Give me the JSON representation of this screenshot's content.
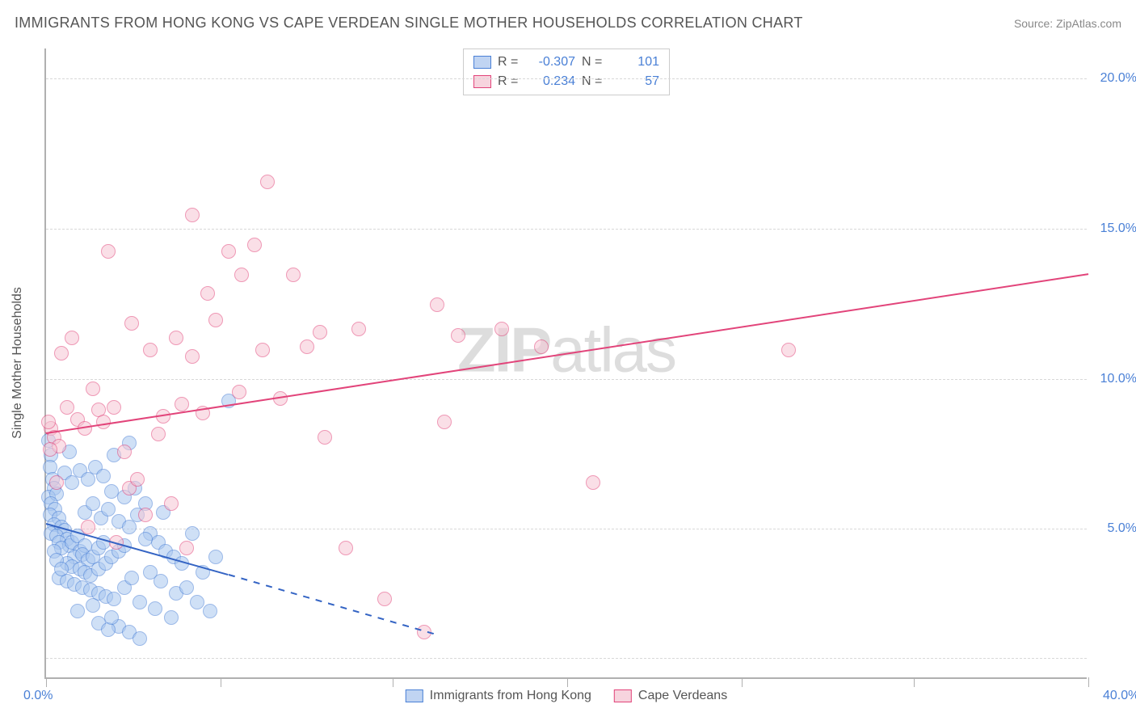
{
  "title": "IMMIGRANTS FROM HONG KONG VS CAPE VERDEAN SINGLE MOTHER HOUSEHOLDS CORRELATION CHART",
  "source": "Source: ZipAtlas.com",
  "watermark": "ZIPatlas",
  "ylabel": "Single Mother Households",
  "xlim": [
    0,
    40
  ],
  "ylim": [
    0,
    21
  ],
  "xtick_positions": [
    0,
    6.7,
    13.3,
    20,
    26.7,
    33.3,
    40
  ],
  "xtick_labels": {
    "0": "0.0%",
    "40": "40.0%"
  },
  "ytick_positions": [
    5,
    10,
    15,
    20
  ],
  "ytick_labels": {
    "5": "5.0%",
    "10": "10.0%",
    "15": "15.0%",
    "20": "20.0%"
  },
  "grid_y": [
    0.7,
    5,
    10,
    15,
    20
  ],
  "series": [
    {
      "name": "Immigrants from Hong Kong",
      "color": "blue",
      "r": "-0.307",
      "n": "101",
      "trend": {
        "x1": 0,
        "y1": 5.2,
        "x2_solid": 7,
        "y2_solid": 3.5,
        "x2_dashed": 15,
        "y2_dashed": 1.5
      },
      "points": [
        [
          0.1,
          7.9
        ],
        [
          0.2,
          7.4
        ],
        [
          0.15,
          7.0
        ],
        [
          0.25,
          6.6
        ],
        [
          0.3,
          6.3
        ],
        [
          0.1,
          6.0
        ],
        [
          0.4,
          6.1
        ],
        [
          0.2,
          5.8
        ],
        [
          0.35,
          5.6
        ],
        [
          0.15,
          5.4
        ],
        [
          0.5,
          5.3
        ],
        [
          0.3,
          5.1
        ],
        [
          0.6,
          5.0
        ],
        [
          0.2,
          4.8
        ],
        [
          0.7,
          4.9
        ],
        [
          0.4,
          4.7
        ],
        [
          0.8,
          4.6
        ],
        [
          0.5,
          4.5
        ],
        [
          0.9,
          4.4
        ],
        [
          0.6,
          4.3
        ],
        [
          1.0,
          4.5
        ],
        [
          1.2,
          4.7
        ],
        [
          1.3,
          4.2
        ],
        [
          1.5,
          4.4
        ],
        [
          1.1,
          4.0
        ],
        [
          1.4,
          4.1
        ],
        [
          1.6,
          3.9
        ],
        [
          1.8,
          4.0
        ],
        [
          2.0,
          4.3
        ],
        [
          2.2,
          4.5
        ],
        [
          0.8,
          3.8
        ],
        [
          1.0,
          3.7
        ],
        [
          1.3,
          3.6
        ],
        [
          1.5,
          3.5
        ],
        [
          1.7,
          3.4
        ],
        [
          2.0,
          3.6
        ],
        [
          2.3,
          3.8
        ],
        [
          2.5,
          4.0
        ],
        [
          2.8,
          4.2
        ],
        [
          3.0,
          4.4
        ],
        [
          0.5,
          3.3
        ],
        [
          0.8,
          3.2
        ],
        [
          1.1,
          3.1
        ],
        [
          1.4,
          3.0
        ],
        [
          1.7,
          2.9
        ],
        [
          2.0,
          2.8
        ],
        [
          2.3,
          2.7
        ],
        [
          2.6,
          2.6
        ],
        [
          3.0,
          3.0
        ],
        [
          3.3,
          3.3
        ],
        [
          0.7,
          6.8
        ],
        [
          1.0,
          6.5
        ],
        [
          1.3,
          6.9
        ],
        [
          1.6,
          6.6
        ],
        [
          1.9,
          7.0
        ],
        [
          2.2,
          6.7
        ],
        [
          2.5,
          6.2
        ],
        [
          1.5,
          5.5
        ],
        [
          1.8,
          5.8
        ],
        [
          2.1,
          5.3
        ],
        [
          2.4,
          5.6
        ],
        [
          2.8,
          5.2
        ],
        [
          3.2,
          5.0
        ],
        [
          3.5,
          5.4
        ],
        [
          3.0,
          6.0
        ],
        [
          3.4,
          6.3
        ],
        [
          3.8,
          5.8
        ],
        [
          4.0,
          4.8
        ],
        [
          4.3,
          4.5
        ],
        [
          4.6,
          4.2
        ],
        [
          4.9,
          4.0
        ],
        [
          5.2,
          3.8
        ],
        [
          4.0,
          3.5
        ],
        [
          4.4,
          3.2
        ],
        [
          3.6,
          2.5
        ],
        [
          4.2,
          2.3
        ],
        [
          4.8,
          2.0
        ],
        [
          5.0,
          2.8
        ],
        [
          5.4,
          3.0
        ],
        [
          5.8,
          2.5
        ],
        [
          2.8,
          1.7
        ],
        [
          3.2,
          1.5
        ],
        [
          3.6,
          1.3
        ],
        [
          2.0,
          1.8
        ],
        [
          2.4,
          1.6
        ],
        [
          6.0,
          3.5
        ],
        [
          6.3,
          2.2
        ],
        [
          0.9,
          7.5
        ],
        [
          2.6,
          7.4
        ],
        [
          3.2,
          7.8
        ],
        [
          5.6,
          4.8
        ],
        [
          6.5,
          4.0
        ],
        [
          0.3,
          4.2
        ],
        [
          0.4,
          3.9
        ],
        [
          0.6,
          3.6
        ],
        [
          1.2,
          2.2
        ],
        [
          1.8,
          2.4
        ],
        [
          2.5,
          2.0
        ],
        [
          3.8,
          4.6
        ],
        [
          4.5,
          5.5
        ],
        [
          7.0,
          9.2
        ]
      ]
    },
    {
      "name": "Cape Verdeans",
      "color": "pink",
      "r": "0.234",
      "n": "57",
      "trend": {
        "x1": 0,
        "y1": 8.2,
        "x2_solid": 40,
        "y2_solid": 13.5
      },
      "points": [
        [
          0.2,
          8.3
        ],
        [
          0.3,
          8.0
        ],
        [
          0.5,
          7.7
        ],
        [
          0.6,
          10.8
        ],
        [
          1.0,
          11.3
        ],
        [
          1.2,
          8.6
        ],
        [
          1.5,
          8.3
        ],
        [
          1.8,
          9.6
        ],
        [
          2.0,
          8.9
        ],
        [
          2.2,
          8.5
        ],
        [
          2.4,
          14.2
        ],
        [
          2.6,
          9.0
        ],
        [
          3.0,
          7.5
        ],
        [
          3.2,
          6.3
        ],
        [
          3.5,
          6.6
        ],
        [
          3.8,
          5.4
        ],
        [
          4.0,
          10.9
        ],
        [
          4.5,
          8.7
        ],
        [
          5.0,
          11.3
        ],
        [
          5.2,
          9.1
        ],
        [
          5.6,
          10.7
        ],
        [
          5.6,
          15.4
        ],
        [
          6.0,
          8.8
        ],
        [
          6.5,
          11.9
        ],
        [
          7.0,
          14.2
        ],
        [
          7.4,
          9.5
        ],
        [
          7.5,
          13.4
        ],
        [
          8.0,
          14.4
        ],
        [
          8.3,
          10.9
        ],
        [
          8.5,
          16.5
        ],
        [
          9.0,
          9.3
        ],
        [
          9.5,
          13.4
        ],
        [
          10.0,
          11.0
        ],
        [
          10.5,
          11.5
        ],
        [
          10.7,
          8.0
        ],
        [
          11.5,
          4.3
        ],
        [
          12.0,
          11.6
        ],
        [
          13.0,
          2.6
        ],
        [
          15.0,
          12.4
        ],
        [
          15.8,
          11.4
        ],
        [
          15.3,
          8.5
        ],
        [
          17.5,
          11.6
        ],
        [
          19.0,
          11.0
        ],
        [
          21.0,
          6.5
        ],
        [
          28.5,
          10.9
        ],
        [
          14.5,
          1.5
        ],
        [
          4.8,
          5.8
        ],
        [
          5.4,
          4.3
        ],
        [
          2.7,
          4.5
        ],
        [
          1.6,
          5.0
        ],
        [
          6.2,
          12.8
        ],
        [
          0.8,
          9.0
        ],
        [
          0.4,
          6.5
        ],
        [
          4.3,
          8.1
        ],
        [
          3.3,
          11.8
        ],
        [
          0.1,
          8.5
        ],
        [
          0.15,
          7.6
        ]
      ]
    }
  ],
  "legend_bottom": [
    {
      "color": "blue",
      "label": "Immigrants from Hong Kong"
    },
    {
      "color": "pink",
      "label": "Cape Verdeans"
    }
  ],
  "colors": {
    "blue_fill": "#a9c7f0",
    "blue_stroke": "#4a80d6",
    "pink_fill": "#f6c6d4",
    "pink_stroke": "#e2447a",
    "axis": "#b0b0b0",
    "grid": "#d8d8d8",
    "text": "#555555"
  }
}
